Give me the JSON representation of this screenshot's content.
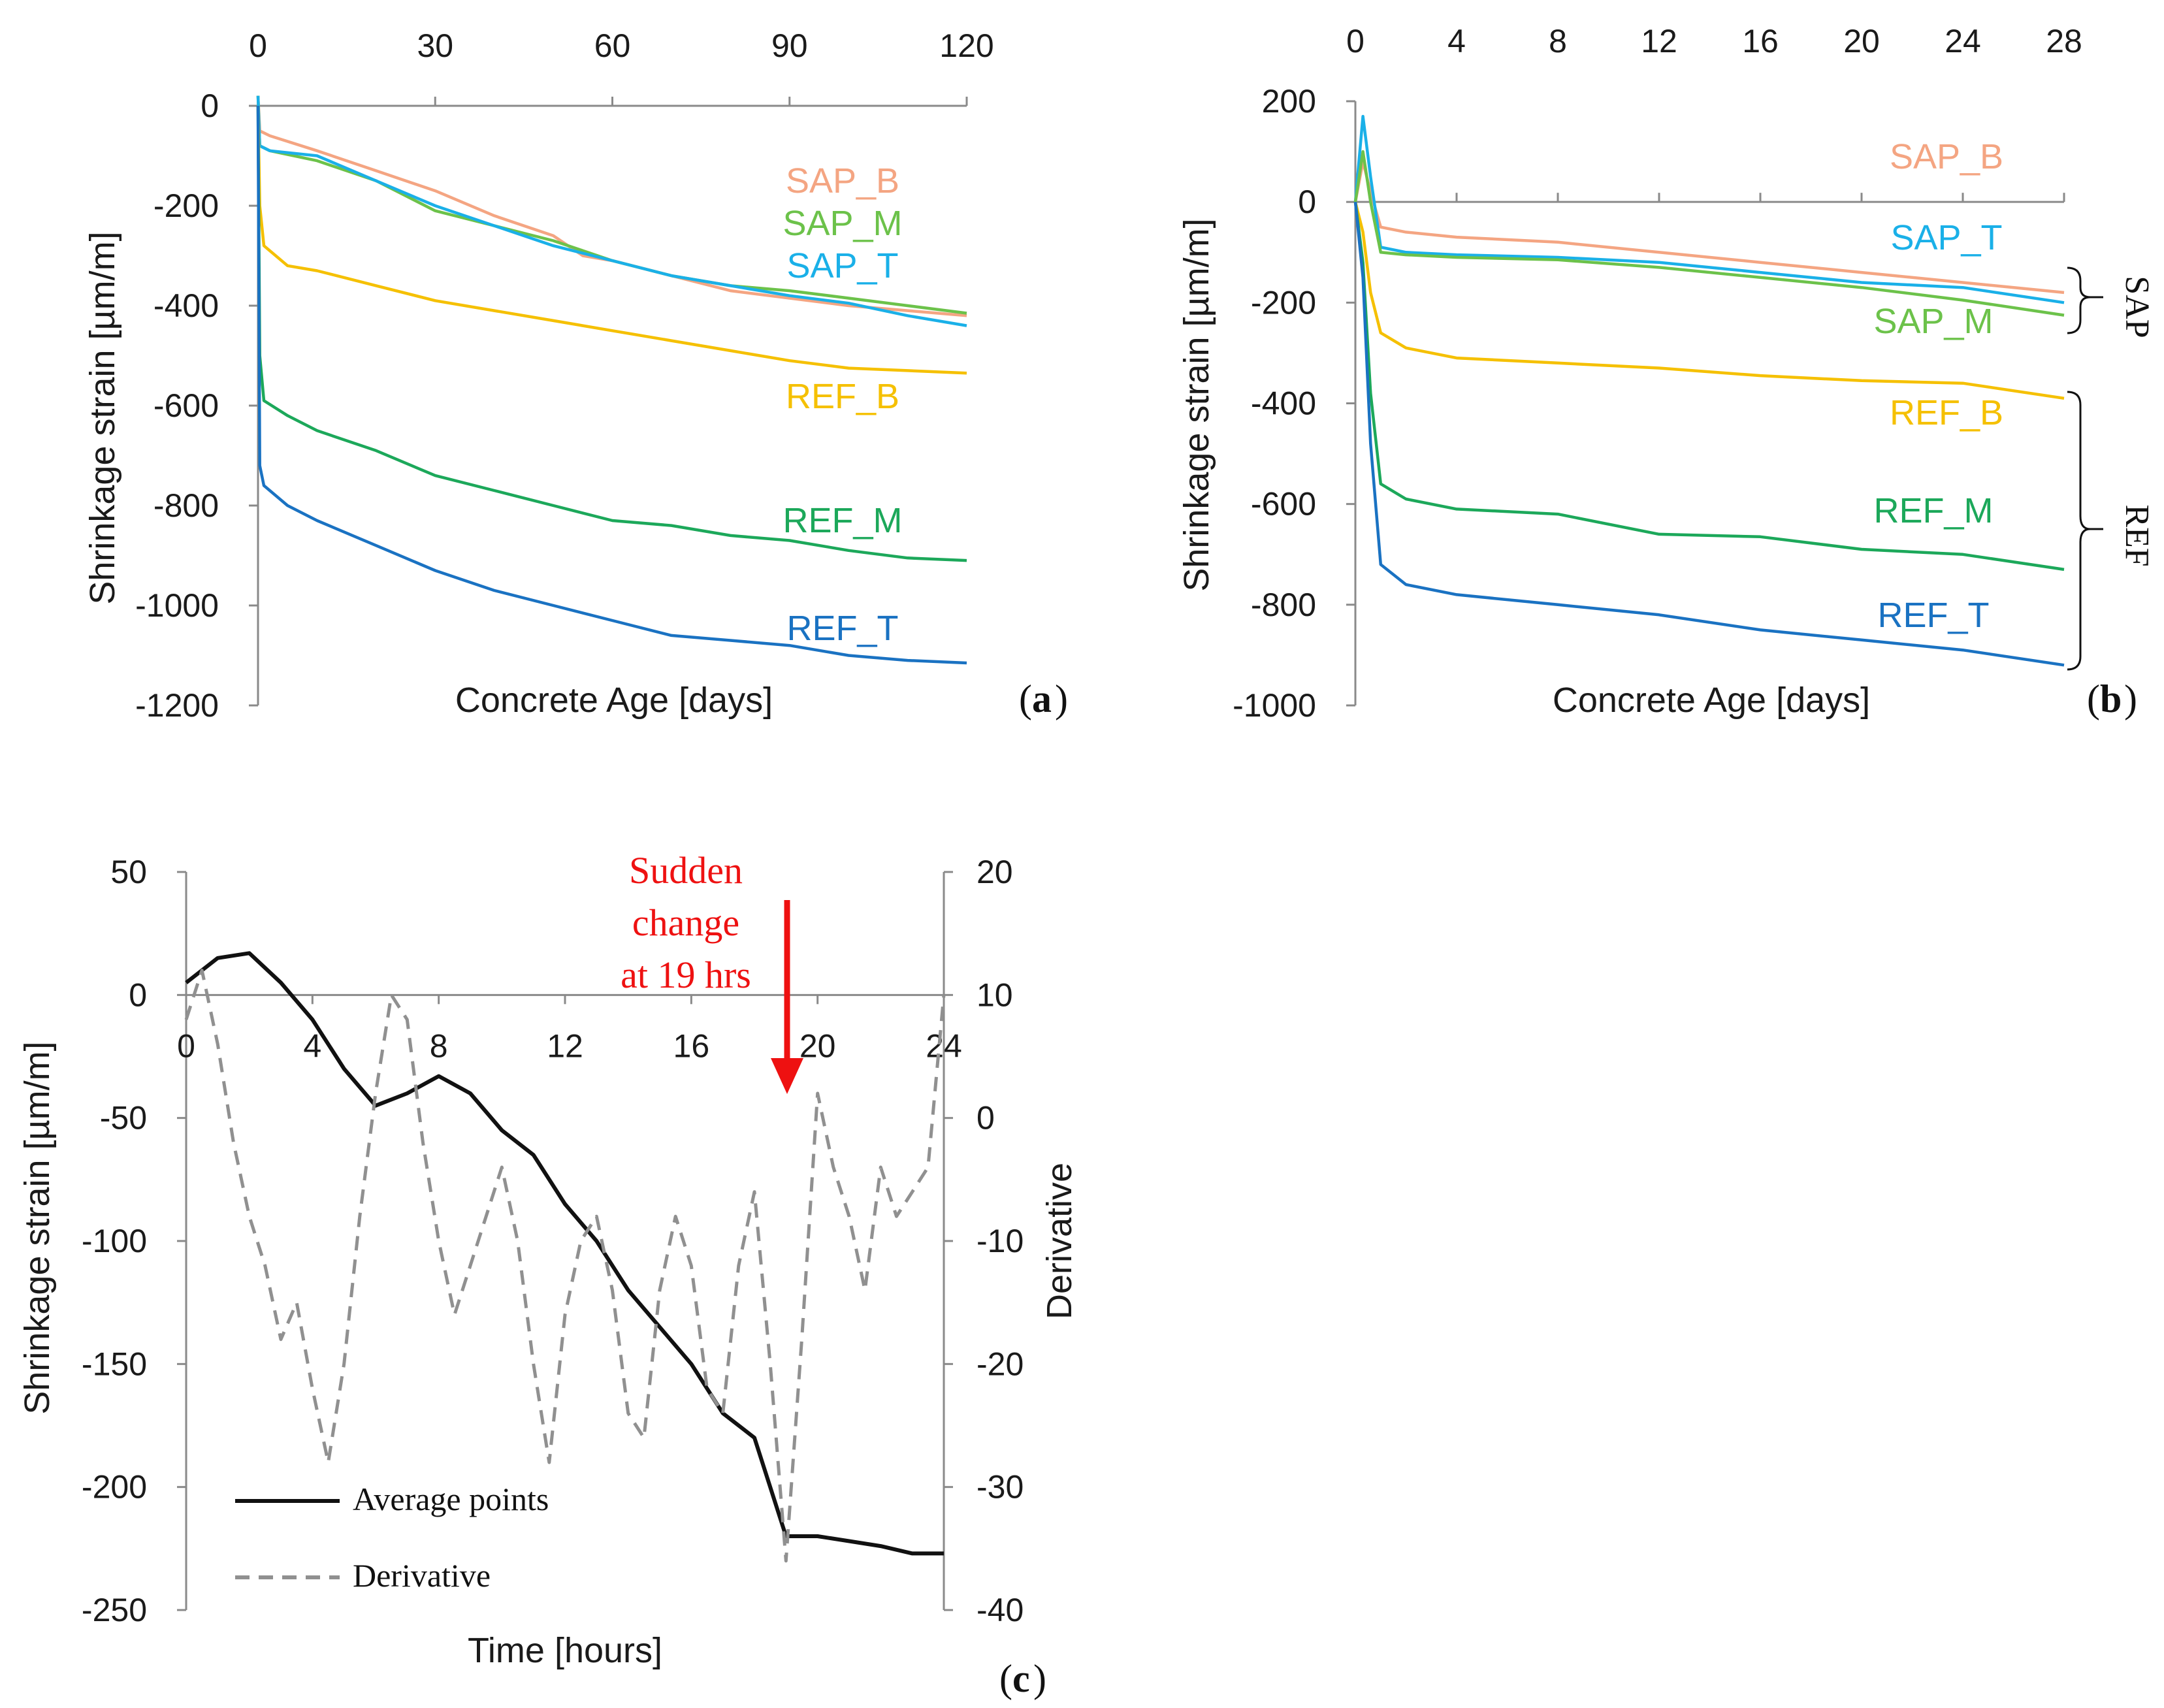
{
  "chart_data": [
    {
      "id": "a",
      "type": "line",
      "panel_label": "a",
      "xlabel": "Concrete Age [days]",
      "ylabel": "Shrinkage strain [µm/m]",
      "xlim": [
        0,
        120
      ],
      "ylim": [
        -1200,
        0
      ],
      "xticks": [
        "0",
        "30",
        "60",
        "90",
        "120"
      ],
      "yticks": [
        "0",
        "-200",
        "-400",
        "-600",
        "-800",
        "-1000",
        "-1200"
      ],
      "series": [
        {
          "name": "SAP_B",
          "color": "#f4a582",
          "x": [
            0,
            0.3,
            2,
            10,
            20,
            30,
            40,
            50,
            55,
            60,
            70,
            80,
            90,
            100,
            110,
            120
          ],
          "y": [
            20,
            -50,
            -60,
            -90,
            -130,
            -170,
            -220,
            -260,
            -300,
            -310,
            -340,
            -370,
            -385,
            -400,
            -410,
            -420
          ]
        },
        {
          "name": "SAP_M",
          "color": "#6cc24a",
          "x": [
            0,
            0.3,
            2,
            10,
            20,
            30,
            40,
            50,
            60,
            70,
            80,
            90,
            100,
            110,
            120
          ],
          "y": [
            20,
            -80,
            -90,
            -110,
            -150,
            -210,
            -240,
            -270,
            -310,
            -340,
            -360,
            -370,
            -385,
            -400,
            -415
          ]
        },
        {
          "name": "SAP_T",
          "color": "#1ab0e8",
          "x": [
            0,
            0.3,
            2,
            10,
            20,
            30,
            40,
            50,
            60,
            70,
            80,
            90,
            100,
            110,
            120
          ],
          "y": [
            20,
            -80,
            -90,
            -100,
            -150,
            -200,
            -240,
            -280,
            -310,
            -340,
            -360,
            -380,
            -395,
            -420,
            -440
          ]
        },
        {
          "name": "REF_B",
          "color": "#f5c000",
          "x": [
            0,
            0.3,
            1,
            5,
            10,
            20,
            30,
            40,
            50,
            60,
            70,
            80,
            90,
            100,
            110,
            120
          ],
          "y": [
            0,
            -200,
            -280,
            -320,
            -330,
            -360,
            -390,
            -410,
            -430,
            -450,
            -470,
            -490,
            -510,
            -525,
            -530,
            -535
          ]
        },
        {
          "name": "REF_M",
          "color": "#1ca85a",
          "x": [
            0,
            0.3,
            1,
            5,
            10,
            20,
            30,
            40,
            50,
            60,
            70,
            80,
            90,
            100,
            110,
            120
          ],
          "y": [
            0,
            -500,
            -590,
            -620,
            -650,
            -690,
            -740,
            -770,
            -800,
            -830,
            -840,
            -860,
            -870,
            -890,
            -905,
            -910
          ]
        },
        {
          "name": "REF_T",
          "color": "#1a72c2",
          "x": [
            0,
            0.3,
            1,
            5,
            10,
            20,
            30,
            40,
            50,
            60,
            70,
            80,
            90,
            100,
            110,
            120
          ],
          "y": [
            0,
            -720,
            -760,
            -800,
            -830,
            -880,
            -930,
            -970,
            -1000,
            -1030,
            -1060,
            -1070,
            -1080,
            -1100,
            -1110,
            -1115
          ]
        }
      ]
    },
    {
      "id": "b",
      "type": "line",
      "panel_label": "b",
      "xlabel": "Concrete Age [days]",
      "ylabel": "Shrinkage strain [µm/m]",
      "xlim": [
        0,
        28
      ],
      "ylim": [
        -1000,
        200
      ],
      "xticks": [
        "0",
        "4",
        "8",
        "12",
        "16",
        "20",
        "24",
        "28"
      ],
      "yticks": [
        "200",
        "0",
        "-200",
        "-400",
        "-600",
        "-800",
        "-1000"
      ],
      "groups": [
        {
          "name": "SAP",
          "members": [
            "SAP_B",
            "SAP_T",
            "SAP_M"
          ]
        },
        {
          "name": "REF",
          "members": [
            "REF_B",
            "REF_M",
            "REF_T"
          ]
        }
      ],
      "series": [
        {
          "name": "SAP_B",
          "color": "#f4a582",
          "x": [
            0,
            0.3,
            0.6,
            1,
            2,
            4,
            8,
            12,
            16,
            20,
            24,
            28
          ],
          "y": [
            0,
            80,
            20,
            -50,
            -60,
            -70,
            -80,
            -100,
            -120,
            -140,
            -160,
            -180
          ]
        },
        {
          "name": "SAP_T",
          "color": "#1ab0e8",
          "x": [
            0,
            0.3,
            0.6,
            1,
            2,
            4,
            8,
            12,
            16,
            20,
            24,
            28
          ],
          "y": [
            0,
            170,
            50,
            -90,
            -100,
            -105,
            -110,
            -120,
            -140,
            -160,
            -170,
            -200
          ]
        },
        {
          "name": "SAP_M",
          "color": "#6cc24a",
          "x": [
            0,
            0.3,
            0.6,
            1,
            2,
            4,
            8,
            12,
            16,
            20,
            24,
            28
          ],
          "y": [
            0,
            100,
            0,
            -100,
            -105,
            -110,
            -115,
            -130,
            -150,
            -170,
            -195,
            -225
          ]
        },
        {
          "name": "REF_B",
          "color": "#f5c000",
          "x": [
            0,
            0.3,
            0.6,
            1,
            2,
            4,
            8,
            12,
            16,
            20,
            24,
            28
          ],
          "y": [
            0,
            -60,
            -180,
            -260,
            -290,
            -310,
            -320,
            -330,
            -345,
            -355,
            -360,
            -390
          ]
        },
        {
          "name": "REF_M",
          "color": "#1ca85a",
          "x": [
            0,
            0.3,
            0.6,
            1,
            2,
            4,
            8,
            12,
            16,
            20,
            24,
            28
          ],
          "y": [
            0,
            -120,
            -380,
            -560,
            -590,
            -610,
            -620,
            -660,
            -665,
            -690,
            -700,
            -730
          ]
        },
        {
          "name": "REF_T",
          "color": "#1a72c2",
          "x": [
            0,
            0.3,
            0.6,
            1,
            2,
            4,
            8,
            12,
            16,
            20,
            24,
            28
          ],
          "y": [
            0,
            -150,
            -480,
            -720,
            -760,
            -780,
            -800,
            -820,
            -850,
            -870,
            -890,
            -920
          ]
        }
      ]
    },
    {
      "id": "c",
      "type": "line",
      "panel_label": "c",
      "xlabel": "Time [hours]",
      "ylabel": "Shrinkage strain [µm/m]",
      "y2label": "Derivative",
      "xlim": [
        0,
        24
      ],
      "ylim": [
        -250,
        50
      ],
      "y2lim": [
        -40,
        20
      ],
      "xticks": [
        "0",
        "4",
        "8",
        "12",
        "16",
        "20",
        "24"
      ],
      "yticks": [
        "50",
        "0",
        "-50",
        "-100",
        "-150",
        "-200",
        "-250"
      ],
      "y2ticks": [
        "20",
        "10",
        "0",
        "-10",
        "-20",
        "-30",
        "-40"
      ],
      "annotation": {
        "line1": "Sudden",
        "line2": "change",
        "line3": "at 19 hrs",
        "x": 19
      },
      "series": [
        {
          "name": "Average points",
          "color": "#111111",
          "style": "solid",
          "axis": "left",
          "x": [
            0,
            1,
            2,
            3,
            4,
            5,
            6,
            7,
            8,
            9,
            10,
            11,
            12,
            13,
            14,
            15,
            16,
            17,
            18,
            19,
            20,
            21,
            22,
            23,
            24
          ],
          "y": [
            5,
            15,
            17,
            5,
            -10,
            -30,
            -45,
            -40,
            -33,
            -40,
            -55,
            -65,
            -85,
            -100,
            -120,
            -135,
            -150,
            -170,
            -180,
            -220,
            -220,
            -222,
            -224,
            -227,
            -227
          ]
        },
        {
          "name": "Derivative",
          "color": "#909090",
          "style": "dashed",
          "axis": "right",
          "x": [
            0,
            0.5,
            1,
            1.5,
            2,
            2.5,
            3,
            3.5,
            4,
            4.5,
            5,
            5.5,
            6,
            6.5,
            7,
            7.5,
            8,
            8.5,
            9,
            9.5,
            10,
            10.5,
            11,
            11.5,
            12,
            12.5,
            13,
            13.5,
            14,
            14.5,
            15,
            15.5,
            16,
            16.5,
            17,
            17.5,
            18,
            18.5,
            19,
            19.5,
            20,
            20.5,
            21,
            21.5,
            22,
            22.5,
            23,
            23.5,
            24
          ],
          "y": [
            8,
            12,
            6,
            -2,
            -8,
            -12,
            -18,
            -15,
            -22,
            -28,
            -20,
            -8,
            2,
            10,
            8,
            -2,
            -10,
            -16,
            -12,
            -8,
            -4,
            -10,
            -20,
            -28,
            -16,
            -10,
            -8,
            -14,
            -24,
            -26,
            -14,
            -8,
            -12,
            -22,
            -24,
            -12,
            -6,
            -20,
            -36,
            -18,
            2,
            -4,
            -8,
            -14,
            -4,
            -8,
            -6,
            -4,
            10
          ]
        }
      ]
    }
  ]
}
